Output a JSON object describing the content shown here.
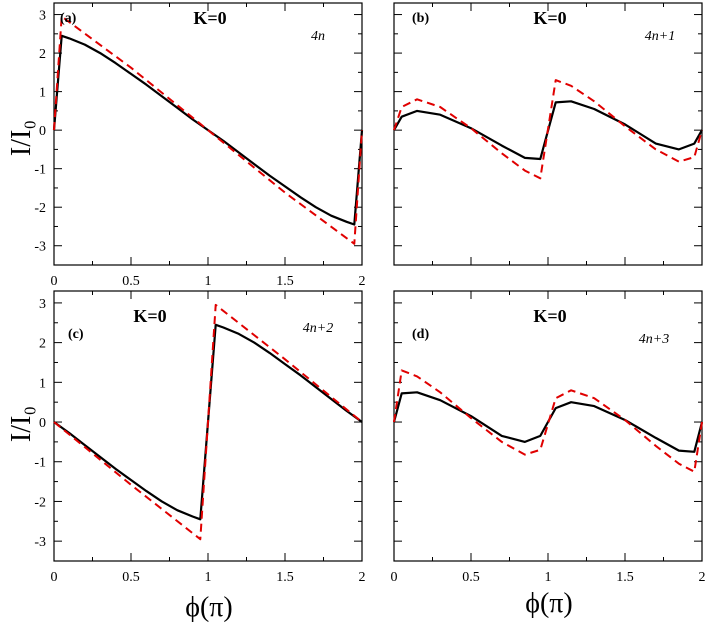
{
  "figure": {
    "xlabel": "ϕ(π)",
    "ylabel": "I/I₀"
  },
  "chart_data": [
    {
      "type": "line",
      "panel": "(a)",
      "label": "K=0",
      "case": "4n",
      "xlim": [
        0,
        2
      ],
      "ylim": [
        -3.5,
        3.3
      ],
      "xticks": [
        0,
        0.5,
        1,
        1.5,
        2
      ],
      "xtick_labels": [
        "0",
        "0.5",
        "1",
        "1.5",
        "2"
      ],
      "yticks": [
        -3,
        -2,
        -1,
        0,
        1,
        2,
        3
      ],
      "ytick_labels": [
        "-3",
        "-2",
        "-1",
        "0",
        "1",
        "2",
        "3"
      ],
      "series": [
        {
          "name": "solid",
          "color": "#000000",
          "dashed": false,
          "x": [
            0,
            0.05,
            0.1,
            0.2,
            0.3,
            0.4,
            0.5,
            0.6,
            0.7,
            0.8,
            0.9,
            1.0,
            1.1,
            1.2,
            1.3,
            1.4,
            1.5,
            1.6,
            1.7,
            1.8,
            1.9,
            1.95,
            2.0
          ],
          "y": [
            0,
            2.45,
            2.38,
            2.22,
            2.0,
            1.74,
            1.46,
            1.18,
            0.88,
            0.58,
            0.28,
            0,
            -0.28,
            -0.58,
            -0.88,
            -1.18,
            -1.46,
            -1.74,
            -2.0,
            -2.22,
            -2.38,
            -2.45,
            0
          ]
        },
        {
          "name": "dashed",
          "color": "#e00000",
          "dashed": true,
          "x": [
            0,
            0.05,
            0.5,
            1.0,
            1.5,
            1.95,
            2.0
          ],
          "y": [
            0,
            2.95,
            1.62,
            0,
            -1.62,
            -2.95,
            0
          ]
        }
      ]
    },
    {
      "type": "line",
      "panel": "(b)",
      "label": "K=0",
      "case": "4n+1",
      "xlim": [
        0,
        2
      ],
      "ylim": [
        -3.5,
        3.3
      ],
      "xticks": [
        0,
        0.5,
        1,
        1.5,
        2
      ],
      "xtick_labels": [
        "",
        "",
        "",
        "",
        ""
      ],
      "yticks": [
        -3,
        -2,
        -1,
        0,
        1,
        2,
        3
      ],
      "ytick_labels": [
        "",
        "",
        "",
        "",
        "",
        "",
        ""
      ],
      "series": [
        {
          "name": "solid",
          "color": "#000000",
          "dashed": false,
          "x": [
            0,
            0.05,
            0.15,
            0.3,
            0.5,
            0.7,
            0.85,
            0.95,
            1.05,
            1.15,
            1.3,
            1.5,
            1.7,
            1.85,
            1.95,
            2.0
          ],
          "y": [
            0,
            0.35,
            0.5,
            0.4,
            0.05,
            -0.4,
            -0.72,
            -0.75,
            0.72,
            0.75,
            0.55,
            0.15,
            -0.35,
            -0.5,
            -0.35,
            0
          ]
        },
        {
          "name": "dashed",
          "color": "#e00000",
          "dashed": true,
          "x": [
            0,
            0.05,
            0.15,
            0.3,
            0.5,
            0.7,
            0.85,
            0.95,
            1.05,
            1.15,
            1.3,
            1.5,
            1.7,
            1.85,
            1.95,
            2.0
          ],
          "y": [
            0,
            0.6,
            0.8,
            0.6,
            0.05,
            -0.6,
            -1.05,
            -1.25,
            1.3,
            1.15,
            0.75,
            0.1,
            -0.5,
            -0.82,
            -0.7,
            0
          ]
        }
      ]
    },
    {
      "type": "line",
      "panel": "(c)",
      "label": "K=0",
      "case": "4n+2",
      "xlim": [
        0,
        2
      ],
      "ylim": [
        -3.5,
        3.3
      ],
      "xticks": [
        0,
        0.5,
        1,
        1.5,
        2
      ],
      "xtick_labels": [
        "0",
        "0.5",
        "1",
        "1.5",
        "2"
      ],
      "yticks": [
        -3,
        -2,
        -1,
        0,
        1,
        2,
        3
      ],
      "ytick_labels": [
        "-3",
        "-2",
        "-1",
        "0",
        "1",
        "2",
        "3"
      ],
      "series": [
        {
          "name": "solid",
          "color": "#000000",
          "dashed": false,
          "x": [
            0,
            0.1,
            0.2,
            0.3,
            0.4,
            0.5,
            0.6,
            0.7,
            0.8,
            0.9,
            0.95,
            1.05,
            1.1,
            1.2,
            1.3,
            1.4,
            1.5,
            1.6,
            1.7,
            1.8,
            1.9,
            2.0
          ],
          "y": [
            0,
            -0.28,
            -0.58,
            -0.88,
            -1.18,
            -1.46,
            -1.74,
            -2.0,
            -2.22,
            -2.38,
            -2.45,
            2.45,
            2.38,
            2.22,
            2.0,
            1.74,
            1.46,
            1.18,
            0.88,
            0.58,
            0.28,
            0
          ]
        },
        {
          "name": "dashed",
          "color": "#e00000",
          "dashed": true,
          "x": [
            0,
            0.5,
            0.95,
            1.05,
            1.5,
            2.0
          ],
          "y": [
            0,
            -1.58,
            -2.95,
            2.95,
            1.58,
            0
          ]
        }
      ]
    },
    {
      "type": "line",
      "panel": "(d)",
      "label": "K=0",
      "case": "4n+3",
      "xlim": [
        0,
        2
      ],
      "ylim": [
        -3.5,
        3.3
      ],
      "xticks": [
        0,
        0.5,
        1,
        1.5,
        2
      ],
      "xtick_labels": [
        "0",
        "0.5",
        "1",
        "1.5",
        "2"
      ],
      "yticks": [
        -3,
        -2,
        -1,
        0,
        1,
        2,
        3
      ],
      "ytick_labels": [
        "",
        "",
        "",
        "",
        "",
        "",
        ""
      ],
      "series": [
        {
          "name": "solid",
          "color": "#000000",
          "dashed": false,
          "x": [
            0,
            0.05,
            0.15,
            0.3,
            0.5,
            0.7,
            0.85,
            0.95,
            1.05,
            1.15,
            1.3,
            1.5,
            1.7,
            1.85,
            1.95,
            2.0
          ],
          "y": [
            0,
            0.72,
            0.75,
            0.55,
            0.15,
            -0.35,
            -0.5,
            -0.35,
            0.35,
            0.5,
            0.4,
            0.05,
            -0.4,
            -0.72,
            -0.75,
            0
          ]
        },
        {
          "name": "dashed",
          "color": "#e00000",
          "dashed": true,
          "x": [
            0,
            0.05,
            0.15,
            0.3,
            0.5,
            0.7,
            0.85,
            0.95,
            1.05,
            1.15,
            1.3,
            1.5,
            1.7,
            1.85,
            1.95,
            2.0
          ],
          "y": [
            0,
            1.3,
            1.15,
            0.75,
            0.1,
            -0.5,
            -0.82,
            -0.7,
            0.6,
            0.8,
            0.6,
            0.05,
            -0.6,
            -1.05,
            -1.25,
            0
          ]
        }
      ]
    }
  ]
}
